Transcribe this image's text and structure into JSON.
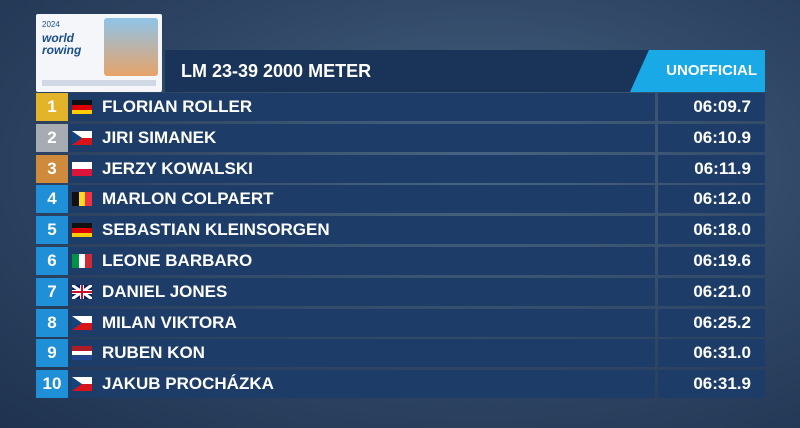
{
  "logo": {
    "year": "2024",
    "brand": "world rowing"
  },
  "header": {
    "title": "LM 23-39 2000 METER",
    "status": "UNOFFICIAL"
  },
  "results": [
    {
      "rank": 1,
      "name": "FLORIAN ROLLER",
      "time": "06:09.7"
    },
    {
      "rank": 2,
      "name": "JIRI SIMANEK",
      "time": "06:10.9"
    },
    {
      "rank": 3,
      "name": "JERZY KOWALSKI",
      "time": "06:11.9"
    },
    {
      "rank": 4,
      "name": "MARLON COLPAERT",
      "time": "06:12.0"
    },
    {
      "rank": 5,
      "name": "SEBASTIAN KLEINSORGEN",
      "time": "06:18.0"
    },
    {
      "rank": 6,
      "name": "LEONE BARBARO",
      "time": "06:19.6"
    },
    {
      "rank": 7,
      "name": "DANIEL JONES",
      "time": "06:21.0"
    },
    {
      "rank": 8,
      "name": "MILAN VIKTORA",
      "time": "06:25.2"
    },
    {
      "rank": 9,
      "name": "RUBEN KON",
      "time": "06:31.0"
    },
    {
      "rank": 10,
      "name": "JAKUB PROCHÁZKA",
      "time": "06:31.9"
    }
  ]
}
